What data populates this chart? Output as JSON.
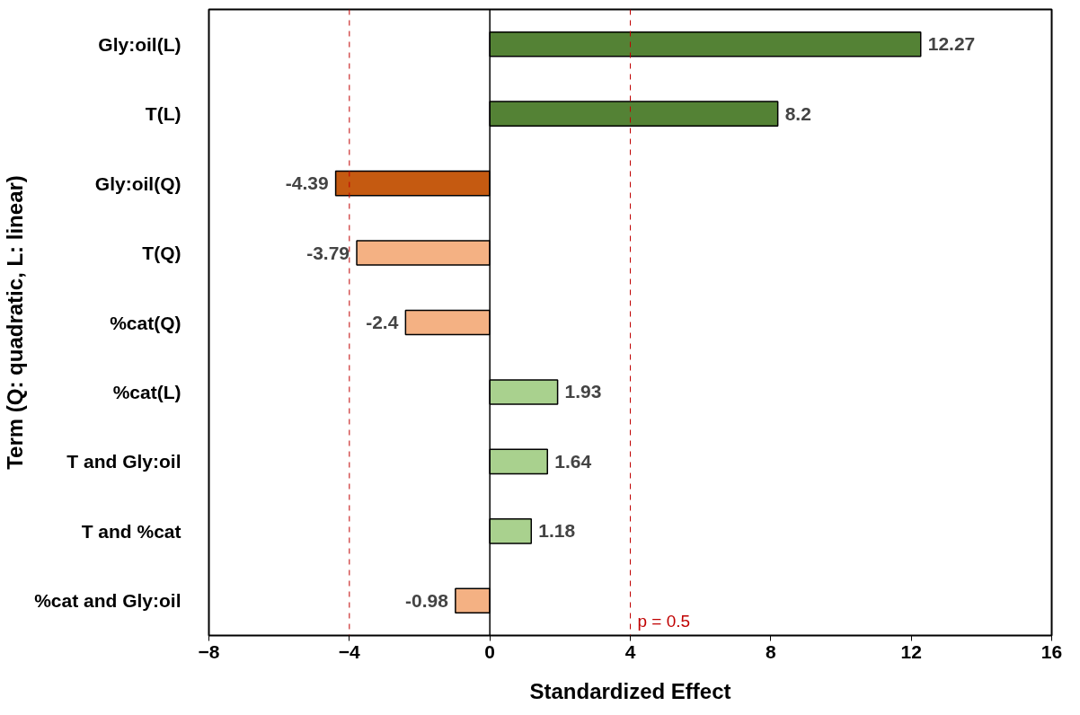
{
  "chart_data": {
    "type": "bar",
    "orientation": "horizontal",
    "xlabel": "Standardized Effect",
    "ylabel": "Term (Q: quadratic, L: linear)",
    "categories": [
      "Gly:oil(L)",
      "T(L)",
      "Gly:oil(Q)",
      "T(Q)",
      "%cat(Q)",
      "%cat(L)",
      "T and Gly:oil",
      "T and %cat",
      "%cat and Gly:oil"
    ],
    "values": [
      12.27,
      8.2,
      -4.39,
      -3.79,
      -2.4,
      1.93,
      1.64,
      1.18,
      -0.98
    ],
    "colors": [
      "#548235",
      "#548235",
      "#c55a11",
      "#f4b183",
      "#f4b183",
      "#a9d18e",
      "#a9d18e",
      "#a9d18e",
      "#f4b183"
    ],
    "xlim": [
      -8,
      16
    ],
    "xticks": [
      -8,
      -4,
      0,
      4,
      8,
      12,
      16
    ],
    "ref_lines": [
      {
        "axis": "x",
        "value": -4,
        "color": "#c00000",
        "line_style": "dashed"
      },
      {
        "axis": "x",
        "value": 4,
        "color": "#c00000",
        "line_style": "dashed"
      }
    ],
    "annotations": [
      {
        "text": "p = 0.5",
        "x": 4
      }
    ],
    "data_labels": true,
    "grid": false
  }
}
